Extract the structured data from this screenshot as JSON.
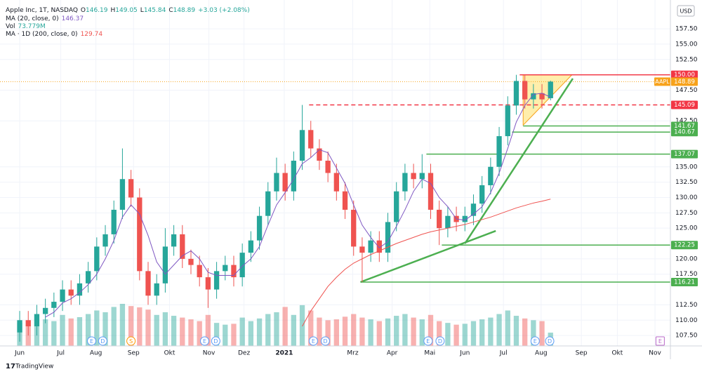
{
  "chart_data": {
    "type": "candlestick",
    "legend": {
      "title": "Apple Inc, 1T, NASDAQ",
      "ohlc": [
        {
          "key": "O",
          "value": "146.19"
        },
        {
          "key": "H",
          "value": "149.05"
        },
        {
          "key": "L",
          "value": "145.84"
        },
        {
          "key": "C",
          "value": "148.89"
        }
      ],
      "change": "+3.03 (+2.08%)",
      "indicators": [
        {
          "name": "MA (20, close, 0)",
          "value": "146.37",
          "color": "#7e57c2"
        },
        {
          "name": "Vol",
          "value": "73.779M",
          "color": "#26a69a"
        },
        {
          "name": "MA · 1D (200, close, 0)",
          "value": "129.74",
          "color": "#ef5350"
        }
      ]
    },
    "currency": "USD",
    "brand": "TradingView",
    "up_color": "#26a69a",
    "down_color": "#ef5350",
    "xlim": [
      -2.3,
      76
    ],
    "ylim": [
      105.8,
      162.2
    ],
    "xticks": [
      {
        "value": 0,
        "label": "Jun"
      },
      {
        "value": 4.8,
        "label": "Jul"
      },
      {
        "value": 8.9,
        "label": "Aug"
      },
      {
        "value": 13.3,
        "label": "Sep"
      },
      {
        "value": 17.5,
        "label": "Okt"
      },
      {
        "value": 22.1,
        "label": "Nov"
      },
      {
        "value": 26.2,
        "label": "Dez"
      },
      {
        "value": 30.9,
        "label": "2021"
      },
      {
        "value": 38.9,
        "label": "Mrz"
      },
      {
        "value": 43.5,
        "label": "Apr"
      },
      {
        "value": 47.9,
        "label": "Mai"
      },
      {
        "value": 52.0,
        "label": "Jun"
      },
      {
        "value": 56.5,
        "label": "Jul"
      },
      {
        "value": 60.9,
        "label": "Aug"
      },
      {
        "value": 65.6,
        "label": "Sep"
      },
      {
        "value": 69.8,
        "label": "Okt"
      },
      {
        "value": 74.2,
        "label": "Nov"
      }
    ],
    "yticks": [
      {
        "value": 107.5,
        "label": "107.50"
      },
      {
        "value": 110,
        "label": "110.00"
      },
      {
        "value": 112.5,
        "label": "112.50"
      },
      {
        "value": 117.5,
        "label": "117.50"
      },
      {
        "value": 120,
        "label": "120.00"
      },
      {
        "value": 125,
        "label": "125.00"
      },
      {
        "value": 127.5,
        "label": "127.50"
      },
      {
        "value": 130,
        "label": "130.00"
      },
      {
        "value": 132.5,
        "label": "132.50"
      },
      {
        "value": 135,
        "label": "135.00"
      },
      {
        "value": 142.5,
        "label": "142.50"
      },
      {
        "value": 147.5,
        "label": "147.50"
      },
      {
        "value": 152.5,
        "label": "152.50"
      },
      {
        "value": 155,
        "label": "155.00"
      },
      {
        "value": 157.5,
        "label": "157.50"
      }
    ],
    "grid": true,
    "open": [
      108,
      110,
      109,
      111,
      112,
      113,
      115,
      114,
      116,
      118,
      122,
      124,
      128,
      133,
      130,
      118,
      114,
      116,
      122,
      124,
      120,
      119,
      117,
      115,
      118,
      119,
      117,
      121,
      123,
      127,
      131,
      134,
      131,
      136,
      141,
      138,
      136,
      134,
      131,
      128,
      122,
      121,
      123,
      121,
      126,
      131,
      134,
      133,
      134,
      128,
      125,
      127,
      126,
      127,
      129,
      132,
      135,
      140,
      145,
      149,
      146,
      147,
      146.19
    ],
    "high": [
      111.5,
      111.5,
      112.5,
      113.5,
      114.5,
      116.5,
      116.5,
      117.5,
      119.5,
      123.5,
      125.5,
      129.5,
      138,
      134.5,
      131.5,
      119.5,
      117.5,
      125,
      125.5,
      125.5,
      121.5,
      120.5,
      118.5,
      119.5,
      120.5,
      120.5,
      122.5,
      124.5,
      128.5,
      132.5,
      136.5,
      135.5,
      137.5,
      145.09,
      142.5,
      139.5,
      137.5,
      135.5,
      132.5,
      129.5,
      123.5,
      124.5,
      124.5,
      127.5,
      132.5,
      135.5,
      135.5,
      137.07,
      135.5,
      129.5,
      128.5,
      128.5,
      128.5,
      130.5,
      133.5,
      136.5,
      141.5,
      146.5,
      150,
      150,
      148.5,
      148.5,
      149.05
    ],
    "low": [
      106.5,
      107.5,
      107.5,
      109.5,
      110.5,
      111.5,
      112.5,
      112.5,
      114.5,
      116.5,
      120.5,
      122.5,
      126.5,
      128.5,
      116.5,
      112.5,
      112.5,
      114.5,
      120.5,
      118.5,
      117.5,
      115.5,
      112,
      113.5,
      116.5,
      115.5,
      115.5,
      119.5,
      121.5,
      125.5,
      129.5,
      129.5,
      129.5,
      134.5,
      136.5,
      134.5,
      132.5,
      129.5,
      126.5,
      120.5,
      116.21,
      119.5,
      119.5,
      119.5,
      124.5,
      129.5,
      131.5,
      131.5,
      126.5,
      122.25,
      123.5,
      124.5,
      124.5,
      125.5,
      127.5,
      130.5,
      133.5,
      138.5,
      143.5,
      144.5,
      144.5,
      144.5,
      145.84
    ],
    "close": [
      110,
      109,
      111,
      112,
      113,
      115,
      114,
      116,
      118,
      122,
      124,
      128,
      133,
      130,
      118,
      114,
      116,
      122,
      124,
      120,
      119,
      117,
      115,
      118,
      119,
      117,
      121,
      123,
      127,
      131,
      134,
      131,
      136,
      141,
      138,
      136,
      134,
      131,
      128,
      122,
      121,
      123,
      121,
      126,
      131,
      134,
      133,
      134,
      128,
      125,
      127,
      126,
      127,
      129,
      132,
      135,
      140,
      145,
      149,
      146,
      147,
      146,
      148.89
    ],
    "volume": [
      520,
      480,
      450,
      600,
      560,
      700,
      620,
      650,
      720,
      800,
      760,
      880,
      950,
      900,
      870,
      820,
      700,
      760,
      680,
      640,
      600,
      560,
      700,
      520,
      480,
      500,
      640,
      560,
      620,
      720,
      760,
      880,
      700,
      920,
      800,
      640,
      580,
      600,
      660,
      720,
      640,
      600,
      560,
      620,
      680,
      720,
      640,
      600,
      700,
      560,
      520,
      480,
      500,
      560,
      600,
      640,
      720,
      800,
      680,
      620,
      580,
      560,
      300
    ],
    "ma_series": [
      {
        "name": "MA 20",
        "color": "#7e57c2",
        "values": [
          null,
          null,
          null,
          110.5,
          111.3,
          112.8,
          113.5,
          114.5,
          115.8,
          117.5,
          120,
          123,
          126.8,
          128.8,
          127.3,
          123.8,
          119.5,
          117.5,
          119,
          120.5,
          121.3,
          120,
          117.8,
          117.3,
          117.3,
          117.3,
          118.8,
          120,
          122,
          125.5,
          128.8,
          130.8,
          133,
          135.5,
          136.5,
          137.8,
          137.3,
          134.8,
          132.3,
          128.8,
          125.5,
          123.5,
          121.8,
          122.8,
          125.3,
          128,
          131,
          133,
          132.3,
          130,
          128.5,
          126.5,
          126.3,
          127.3,
          128.5,
          130.8,
          134,
          138,
          142.3,
          145,
          146.8,
          147,
          146.37
        ]
      },
      {
        "name": "MA 200",
        "color": "#ef5350",
        "values": [
          null,
          null,
          null,
          null,
          null,
          null,
          null,
          null,
          null,
          null,
          null,
          null,
          null,
          null,
          null,
          null,
          null,
          null,
          null,
          null,
          null,
          null,
          null,
          null,
          null,
          null,
          null,
          null,
          null,
          null,
          null,
          null,
          null,
          109,
          111.5,
          113.5,
          115.5,
          117,
          118.3,
          119.3,
          120,
          120.7,
          121.3,
          121.9,
          122.5,
          123,
          123.5,
          124,
          124.4,
          124.7,
          125,
          125.3,
          125.6,
          126,
          126.4,
          126.8,
          127.3,
          127.8,
          128.3,
          128.7,
          129.1,
          129.4,
          129.74
        ]
      }
    ],
    "levels": [
      {
        "value": 150,
        "label": "150.00",
        "color": "#f23645",
        "from": 58.4,
        "style": "solid"
      },
      {
        "value": 148.89,
        "label": "148.89",
        "tag": "AAPL",
        "color": "#f7a21b",
        "from": -2.3,
        "style": "dotted"
      },
      {
        "value": 145.09,
        "label": "145.09",
        "color": "#f23645",
        "from": 33.8,
        "style": "dashed"
      },
      {
        "value": 141.67,
        "label": "141.67",
        "color": "#4caf50",
        "from": 58.8,
        "style": "solid"
      },
      {
        "value": 140.67,
        "label": "140.67",
        "color": "#4caf50",
        "from": 57.5,
        "style": "solid"
      },
      {
        "value": 137.07,
        "label": "137.07",
        "color": "#4caf50",
        "from": 47.5,
        "style": "solid"
      },
      {
        "value": 122.25,
        "label": "122.25",
        "color": "#4caf50",
        "from": 49.3,
        "style": "solid"
      },
      {
        "value": 116.21,
        "label": "116.21",
        "color": "#4caf50",
        "from": 39.8,
        "style": "solid"
      }
    ],
    "trendlines": [
      {
        "x": [
          39.8,
          55.6
        ],
        "y": [
          116.21,
          124.55
        ],
        "color": "#4caf50"
      },
      {
        "x": [
          52.0,
          64.6
        ],
        "y": [
          122.5,
          149.4
        ],
        "color": "#4caf50"
      }
    ],
    "triangle": {
      "x": [
        58.8,
        64.5,
        58.8
      ],
      "y": [
        150,
        150,
        141.8
      ],
      "color": "#ffe066"
    },
    "events": [
      {
        "x": 8.4,
        "letter": "E",
        "color": "#5b9cf6"
      },
      {
        "x": 9.7,
        "letter": "D",
        "color": "#5b9cf6"
      },
      {
        "x": 13.0,
        "letter": "S",
        "color": "#ff9800"
      },
      {
        "x": 21.6,
        "letter": "E",
        "color": "#5b9cf6"
      },
      {
        "x": 22.9,
        "letter": "D",
        "color": "#5b9cf6"
      },
      {
        "x": 34.3,
        "letter": "E",
        "color": "#5b9cf6"
      },
      {
        "x": 35.7,
        "letter": "D",
        "color": "#5b9cf6"
      },
      {
        "x": 47.7,
        "letter": "E",
        "color": "#5b9cf6"
      },
      {
        "x": 49.1,
        "letter": "D",
        "color": "#5b9cf6"
      },
      {
        "x": 60.2,
        "letter": "E",
        "color": "#5b9cf6"
      },
      {
        "x": 61.9,
        "letter": "D",
        "color": "#5b9cf6"
      },
      {
        "x": 74.8,
        "letter": "E",
        "color": "#ba68c8"
      }
    ]
  }
}
